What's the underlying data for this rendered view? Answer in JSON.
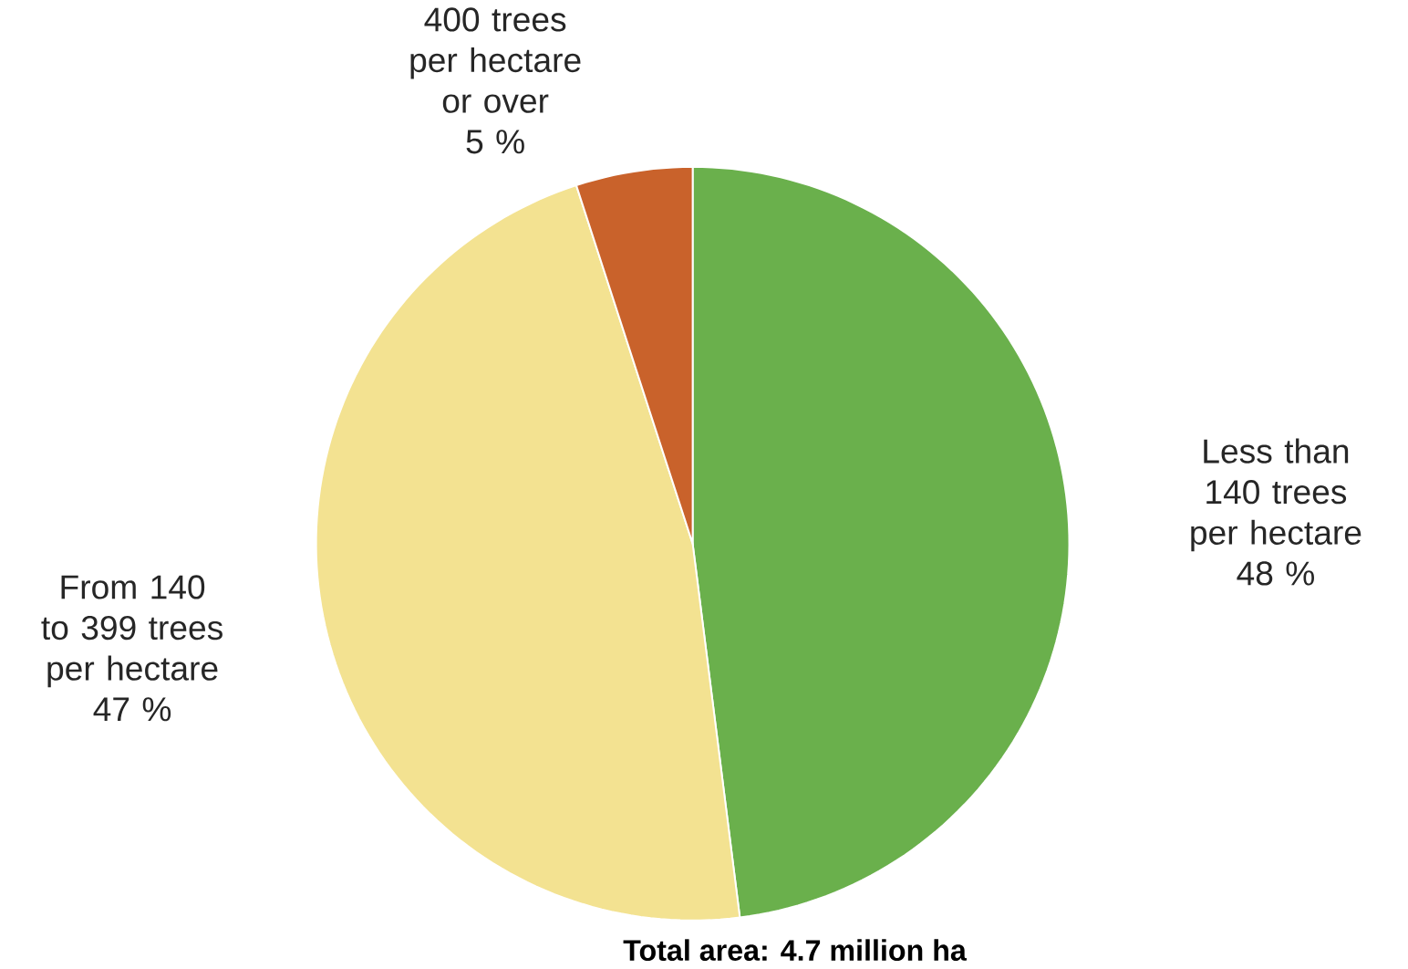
{
  "chart_data": {
    "type": "pie",
    "categories": [
      "Less than 140 trees per hectare",
      "From 140 to 399 trees per hectare",
      "400 trees per hectare or over"
    ],
    "values": [
      48,
      47,
      5
    ],
    "value_labels": [
      "48 %",
      "47 %",
      "5 %"
    ],
    "colors": [
      "#6ab04c",
      "#f3e291",
      "#c9622b"
    ],
    "annotations": [
      "Total area: 4.7 million ha"
    ]
  }
}
